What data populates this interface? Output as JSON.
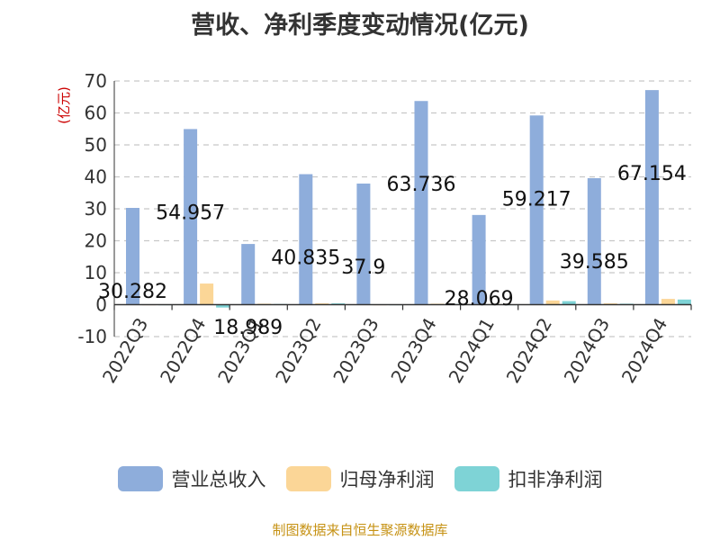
{
  "title": "营收、净利季度变动情况(亿元)",
  "source": "制图数据来自恒生聚源数据库",
  "colors": {
    "revenue": "#8eaddb",
    "net_profit": "#fbd697",
    "deducted_net_profit": "#7ed3d6",
    "unit": "#cc0000",
    "grid": "#c8c8c8",
    "axis": "#333333"
  },
  "chart_data": {
    "type": "bar",
    "title": "营收、净利季度变动情况(亿元)",
    "ylabel": "(亿元)",
    "xlabel": "",
    "ylim": [
      -10,
      70
    ],
    "yticks": [
      -10,
      0,
      10,
      20,
      30,
      40,
      50,
      60,
      70
    ],
    "grid": true,
    "legend_position": "bottom",
    "categories": [
      "2022Q3",
      "2022Q4",
      "2023Q1",
      "2023Q2",
      "2023Q3",
      "2023Q4",
      "2024Q1",
      "2024Q2",
      "2024Q3",
      "2024Q4"
    ],
    "series": [
      {
        "name": "营业总收入",
        "values": [
          30.282,
          54.957,
          18.989,
          40.835,
          37.9,
          63.736,
          28.069,
          59.217,
          39.585,
          67.154
        ],
        "labels": [
          "30.282",
          "54.957",
          "18.989",
          "40.835",
          "37.9",
          "63.736",
          "28.069",
          "59.217",
          "39.585",
          "67.154"
        ]
      },
      {
        "name": "归母净利润",
        "values": [
          0.1,
          6.6,
          0.3,
          0.4,
          0.1,
          0.3,
          0.2,
          1.3,
          0.4,
          1.8
        ]
      },
      {
        "name": "扣非净利润",
        "values": [
          0.1,
          -0.9,
          0.2,
          0.4,
          0.1,
          0.2,
          0.1,
          1.1,
          0.3,
          1.6
        ]
      }
    ]
  }
}
